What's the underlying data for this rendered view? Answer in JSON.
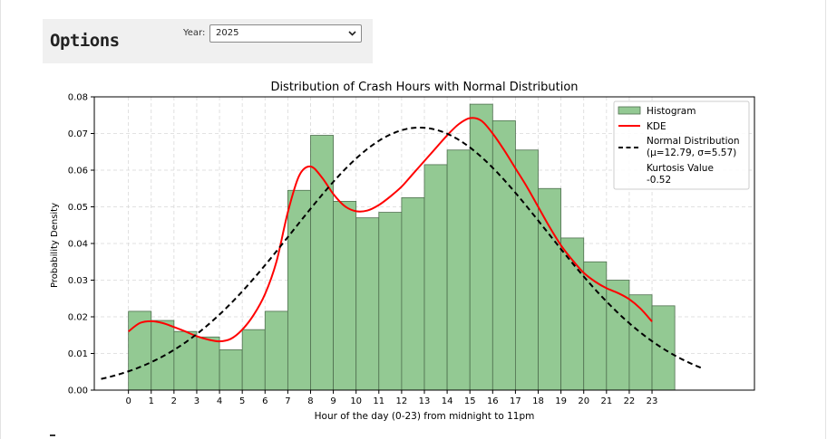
{
  "options": {
    "title": "Options",
    "year_label": "Year:",
    "year_value": "2025"
  },
  "chart_data": {
    "type": "bar",
    "title": "Distribution of Crash Hours with Normal Distribution",
    "xlabel": "Hour of the day (0-23) from midnight to 11pm",
    "ylabel": "Probability Density",
    "xlim": [
      -1.5,
      27.5
    ],
    "ylim": [
      0,
      0.08
    ],
    "yticks": [
      "0.00",
      "0.01",
      "0.02",
      "0.03",
      "0.04",
      "0.05",
      "0.06",
      "0.07",
      "0.08"
    ],
    "categories": [
      "0",
      "1",
      "2",
      "3",
      "4",
      "5",
      "6",
      "7",
      "8",
      "9",
      "10",
      "11",
      "12",
      "13",
      "14",
      "15",
      "16",
      "17",
      "18",
      "19",
      "20",
      "21",
      "22",
      "23"
    ],
    "grid": true,
    "legend_position": "top-right",
    "series": [
      {
        "name": "Histogram",
        "kind": "bar",
        "color": "#93c993",
        "edge_color": "#4f6f4f",
        "values": [
          0.0215,
          0.019,
          0.016,
          0.0145,
          0.011,
          0.0165,
          0.0215,
          0.0545,
          0.0695,
          0.0515,
          0.047,
          0.0485,
          0.0525,
          0.0615,
          0.0655,
          0.078,
          0.0735,
          0.0655,
          0.055,
          0.0415,
          0.035,
          0.03,
          0.026,
          0.023
        ]
      },
      {
        "name": "KDE",
        "kind": "line",
        "color": "#ff0000",
        "x": [
          0,
          0.5,
          1,
          1.5,
          2,
          2.5,
          3,
          3.5,
          4,
          4.5,
          5,
          5.5,
          6,
          6.5,
          7,
          7.5,
          8,
          8.5,
          9,
          9.5,
          10,
          10.5,
          11,
          11.5,
          12,
          12.5,
          13,
          13.5,
          14,
          14.5,
          15,
          15.5,
          16,
          16.5,
          17,
          17.5,
          18,
          18.5,
          19,
          19.5,
          20,
          20.5,
          21,
          21.5,
          22,
          22.5,
          23
        ],
        "y": [
          0.016,
          0.0183,
          0.0188,
          0.0183,
          0.0172,
          0.016,
          0.0147,
          0.0138,
          0.0133,
          0.014,
          0.0165,
          0.0205,
          0.0262,
          0.035,
          0.0485,
          0.0585,
          0.061,
          0.058,
          0.0535,
          0.0502,
          0.0488,
          0.049,
          0.0505,
          0.0528,
          0.0555,
          0.059,
          0.0625,
          0.066,
          0.0695,
          0.0725,
          0.0742,
          0.0735,
          0.07,
          0.0655,
          0.0605,
          0.0555,
          0.05,
          0.0445,
          0.0395,
          0.0355,
          0.032,
          0.0296,
          0.0278,
          0.0265,
          0.0248,
          0.0222,
          0.0187
        ]
      },
      {
        "name": "Normal Distribution\n(μ=12.79, σ=5.57)",
        "kind": "normal",
        "color": "#000000",
        "dashed": true,
        "mu": 12.79,
        "sigma": 5.57,
        "x_range": [
          -1.2,
          25.2
        ]
      }
    ],
    "legend_extra": [
      "Kurtosis Value",
      "-0.52"
    ]
  }
}
